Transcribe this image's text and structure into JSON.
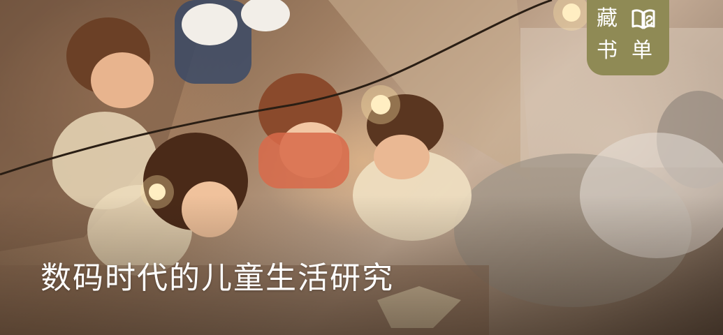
{
  "headline": "数码时代的儿童生活研究",
  "badge": {
    "char_1": "藏",
    "char_2": "书",
    "char_3": "单",
    "logo_icon": "book-logo-icon",
    "color": "#8f8a55"
  },
  "photo": {
    "icon": "children-reading-photo"
  }
}
